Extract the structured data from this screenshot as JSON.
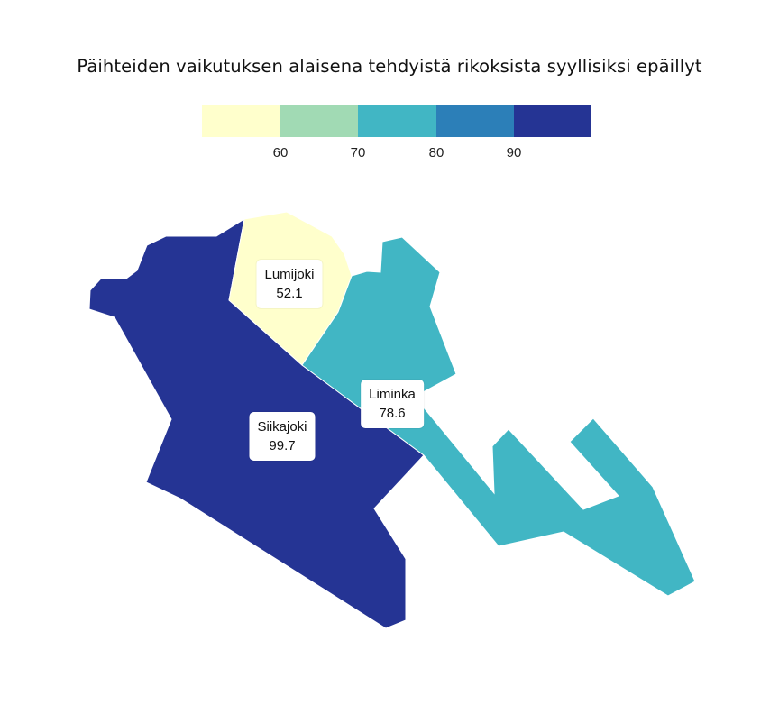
{
  "title": "Päihteiden vaikutuksen alaisena tehdyistä rikoksista syyllisiksi epäillyt",
  "legend": {
    "colors": [
      "#ffffcc",
      "#a1dab4",
      "#41b6c4",
      "#2c7fb8",
      "#253494"
    ],
    "ticks": [
      "60",
      "70",
      "80",
      "90"
    ]
  },
  "regions": [
    {
      "name": "Lumijoki",
      "value": "52.1",
      "color": "#ffffcc"
    },
    {
      "name": "Liminka",
      "value": "78.6",
      "color": "#41b6c4"
    },
    {
      "name": "Siikajoki",
      "value": "99.7",
      "color": "#253494"
    }
  ]
}
